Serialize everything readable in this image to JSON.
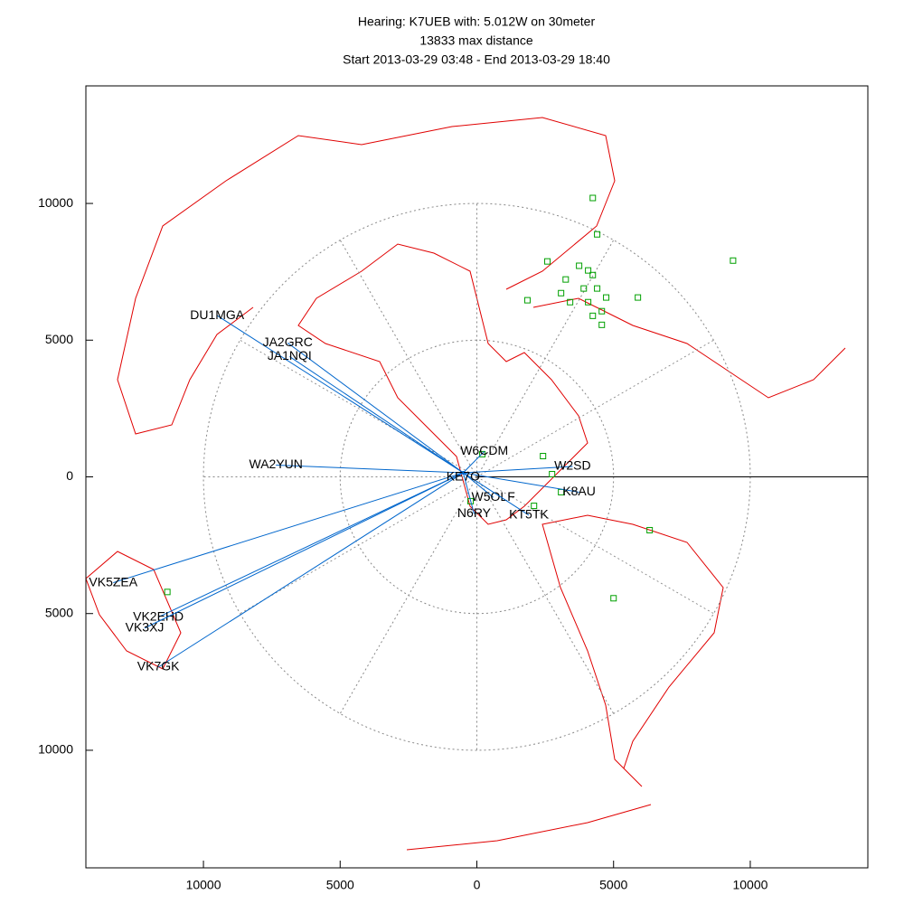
{
  "chart_data": {
    "type": "scatter",
    "title": "Hearing: K7UEB with: 5.012W on 30meter",
    "subtitle": "13833 max distance",
    "date_range": "Start 2013-03-29 03:48 - End 2013-03-29 18:40",
    "xlim": [
      -14300,
      14300
    ],
    "ylim": [
      -14300,
      14300
    ],
    "xticks": [
      {
        "value": -10000,
        "label": "10000"
      },
      {
        "value": -5000,
        "label": "5000"
      },
      0,
      5000,
      10000
    ],
    "yticks": [
      {
        "value": -10000,
        "label": "10000"
      },
      {
        "value": -5000,
        "label": "5000"
      },
      0,
      5000,
      10000
    ],
    "home": {
      "name": "KE7O",
      "x": -500,
      "y": 150
    },
    "stations": {
      "color": "#0066cc",
      "labels": [
        "DU1MGA",
        "JA2GRC",
        "JA1NQI",
        "WA2YUN",
        "VK5ZEA",
        "VK2EHD",
        "VK3XJ",
        "VK7GK",
        "W6CDM",
        "W5OLF",
        "N6RY",
        "W2SD",
        "KT5TK",
        "K8AU"
      ],
      "x": [
        -9500,
        -6920,
        -6850,
        -7350,
        -13300,
        -11650,
        -12150,
        -11650,
        270,
        600,
        -100,
        3500,
        1900,
        3740
      ],
      "y": [
        5900,
        4900,
        4400,
        430,
        -3870,
        -5130,
        -5530,
        -6960,
        930,
        -750,
        -1350,
        380,
        -1400,
        -560
      ]
    },
    "spots": {
      "color": "#00a000",
      "x": [
        4240,
        4400,
        2580,
        1850,
        3250,
        3740,
        4070,
        4240,
        3910,
        4400,
        4730,
        4070,
        4570,
        4240,
        4570,
        3080,
        3410,
        5890,
        9370,
        5000,
        6320,
        -11320,
        200,
        2420,
        2750,
        3080,
        2090,
        -230
      ],
      "y": [
        10200,
        8870,
        7880,
        6460,
        7220,
        7720,
        7550,
        7380,
        6890,
        6890,
        6560,
        6390,
        6060,
        5890,
        5560,
        6720,
        6390,
        6560,
        7910,
        -4440,
        -1950,
        -4210,
        830,
        760,
        100,
        -560,
        -1060,
        -890
      ]
    }
  }
}
